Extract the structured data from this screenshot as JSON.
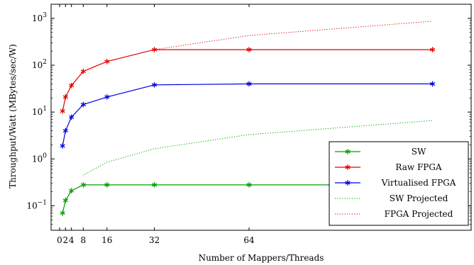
{
  "chart_data": {
    "type": "line",
    "xlabel": "Number of Mappers/Threads",
    "ylabel": "Throughput/Watt (MBytes/sec/W)",
    "yscale": "log",
    "xlim": [
      0,
      128
    ],
    "ylim": [
      0.03,
      2000
    ],
    "x_ticks": [
      0,
      2,
      4,
      8,
      16,
      32,
      64
    ],
    "x_tick_labels": [
      "0",
      "2",
      "4",
      "8",
      "16",
      "32",
      "64"
    ],
    "y_ticks": [
      0.1,
      1,
      10,
      100,
      1000
    ],
    "y_tick_labels": [
      "10",
      "10",
      "10",
      "10",
      "10"
    ],
    "y_tick_exponents": [
      "−1",
      "0",
      "1",
      "2",
      "3"
    ],
    "grid": false,
    "legend_position": "bottom-right",
    "series": [
      {
        "name": "SW",
        "color": "#00a000",
        "style": "solid",
        "marker": "star",
        "x": [
          1,
          2,
          4,
          8,
          16,
          32,
          64,
          126
        ],
        "y": [
          0.07,
          0.13,
          0.21,
          0.28,
          0.28,
          0.28,
          0.28,
          0.28
        ]
      },
      {
        "name": "Raw FPGA",
        "color": "#e00000",
        "style": "solid",
        "marker": "star",
        "x": [
          1,
          2,
          4,
          8,
          16,
          32,
          64,
          126
        ],
        "y": [
          10.5,
          21,
          37,
          74,
          120,
          215,
          215,
          215
        ]
      },
      {
        "name": "Virtualised FPGA",
        "color": "#0000e0",
        "style": "solid",
        "marker": "star",
        "x": [
          1,
          2,
          4,
          8,
          16,
          32,
          64,
          126
        ],
        "y": [
          1.9,
          4.0,
          7.8,
          14.5,
          21,
          38,
          40,
          40
        ]
      },
      {
        "name": "SW Projected",
        "color": "#00a000",
        "style": "dotted",
        "marker": "none",
        "x": [
          8,
          16,
          32,
          64,
          126
        ],
        "y": [
          0.45,
          0.85,
          1.65,
          3.3,
          6.6
        ]
      },
      {
        "name": "FPGA Projected",
        "color": "#e00000",
        "style": "dotted",
        "marker": "none",
        "x": [
          32,
          64,
          126
        ],
        "y": [
          215,
          430,
          870
        ]
      }
    ]
  }
}
